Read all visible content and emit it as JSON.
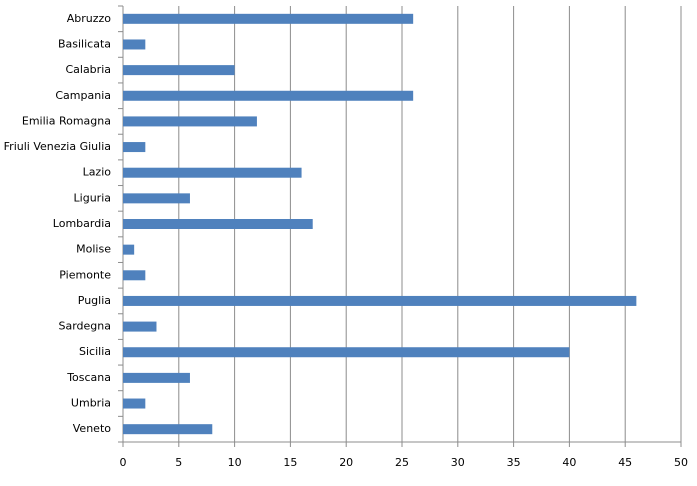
{
  "chart_data": {
    "type": "barh",
    "categories": [
      "Abruzzo",
      "Basilicata",
      "Calabria",
      "Campania",
      "Emilia Romagna",
      "Friuli Venezia Giulia",
      "Lazio",
      "Liguria",
      "Lombardia",
      "Molise",
      "Piemonte",
      "Puglia",
      "Sardegna",
      "Sicilia",
      "Toscana",
      "Umbria",
      "Veneto"
    ],
    "values": [
      26,
      2,
      10,
      26,
      12,
      2,
      16,
      6,
      17,
      1,
      2,
      46,
      3,
      40,
      6,
      2,
      8
    ],
    "color": "#4f81bd",
    "xlim": [
      0,
      50
    ],
    "xticks": [
      0,
      5,
      10,
      15,
      20,
      25,
      30,
      35,
      40,
      45,
      50
    ],
    "grid": true
  }
}
